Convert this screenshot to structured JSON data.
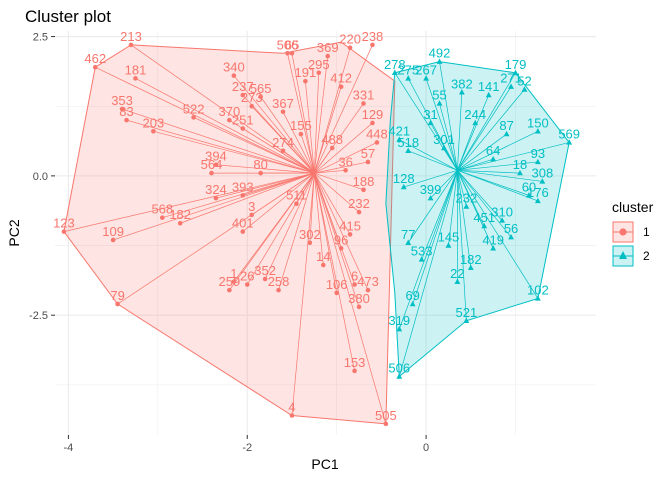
{
  "chart_data": {
    "type": "scatter",
    "title": "Cluster plot",
    "xlabel": "PC1",
    "ylabel": "PC2",
    "xlim": [
      -4.15,
      1.9
    ],
    "ylim": [
      -4.65,
      2.6
    ],
    "x_ticks": [
      -4,
      -2,
      0
    ],
    "x_tick_labels": [
      "-4",
      "-2",
      "0"
    ],
    "y_ticks": [
      2.5,
      0.0,
      -2.5
    ],
    "y_tick_labels": [
      "2.5",
      "0.0",
      "-2.5"
    ],
    "grid": true,
    "legend": {
      "title": "cluster",
      "placement": "right",
      "entries": [
        "1",
        "2"
      ]
    },
    "colors": {
      "cluster1": "#F8766D",
      "cluster2": "#00BFC4",
      "grid": "#ebebeb"
    },
    "clusters": [
      {
        "name": "1",
        "center": [
          -1.25,
          0.05
        ],
        "hull": [
          [
            -3.3,
            2.35
          ],
          [
            -1.6,
            2.2
          ],
          [
            -0.95,
            2.4
          ],
          [
            -0.35,
            1.7
          ],
          [
            -0.45,
            -4.45
          ],
          [
            -1.5,
            -4.3
          ],
          [
            -3.45,
            -2.3
          ],
          [
            -4.05,
            -1.0
          ],
          [
            -3.7,
            1.95
          ]
        ],
        "points": [
          {
            "id": "213",
            "x": -3.3,
            "y": 2.35
          },
          {
            "id": "462",
            "x": -3.7,
            "y": 1.95
          },
          {
            "id": "181",
            "x": -3.25,
            "y": 1.75
          },
          {
            "id": "353",
            "x": -3.4,
            "y": 1.2
          },
          {
            "id": "83",
            "x": -3.35,
            "y": 1.0
          },
          {
            "id": "203",
            "x": -3.05,
            "y": 0.8
          },
          {
            "id": "522",
            "x": -2.6,
            "y": 1.05
          },
          {
            "id": "340",
            "x": -2.15,
            "y": 1.8
          },
          {
            "id": "237",
            "x": -2.05,
            "y": 1.45
          },
          {
            "id": "565",
            "x": -1.85,
            "y": 1.42
          },
          {
            "id": "273",
            "x": -1.95,
            "y": 1.25
          },
          {
            "id": "370",
            "x": -2.2,
            "y": 1.0
          },
          {
            "id": "251",
            "x": -2.05,
            "y": 0.85
          },
          {
            "id": "394",
            "x": -2.35,
            "y": 0.2
          },
          {
            "id": "564",
            "x": -2.4,
            "y": 0.05
          },
          {
            "id": "324",
            "x": -2.35,
            "y": -0.4
          },
          {
            "id": "393",
            "x": -2.05,
            "y": -0.35
          },
          {
            "id": "568",
            "x": -2.95,
            "y": -0.75
          },
          {
            "id": "182",
            "x": -2.75,
            "y": -0.85
          },
          {
            "id": "401",
            "x": -2.05,
            "y": -1.0
          },
          {
            "id": "3",
            "x": -1.95,
            "y": -0.7
          },
          {
            "id": "109",
            "x": -3.5,
            "y": -1.15
          },
          {
            "id": "123",
            "x": -4.05,
            "y": -1.0
          },
          {
            "id": "79",
            "x": -3.45,
            "y": -2.3
          },
          {
            "id": "1",
            "x": -2.15,
            "y": -1.9
          },
          {
            "id": "259",
            "x": -2.2,
            "y": -2.05
          },
          {
            "id": "26",
            "x": -2.0,
            "y": -1.95
          },
          {
            "id": "352",
            "x": -1.8,
            "y": -1.85
          },
          {
            "id": "258",
            "x": -1.65,
            "y": -2.05
          },
          {
            "id": "506",
            "x": -1.55,
            "y": 2.2
          },
          {
            "id": "65",
            "x": -1.5,
            "y": 2.2
          },
          {
            "id": "369",
            "x": -1.1,
            "y": 2.15
          },
          {
            "id": "220",
            "x": -0.85,
            "y": 2.3
          },
          {
            "id": "238",
            "x": -0.6,
            "y": 2.35
          },
          {
            "id": "4",
            "x": -1.5,
            "y": -4.3
          },
          {
            "id": "505",
            "x": -0.45,
            "y": -4.45
          },
          {
            "id": "153",
            "x": -0.8,
            "y": -3.5
          },
          {
            "id": "380",
            "x": -0.75,
            "y": -2.35
          },
          {
            "id": "6",
            "x": -0.8,
            "y": -1.95
          },
          {
            "id": "473",
            "x": -0.65,
            "y": -2.05
          },
          {
            "id": "106",
            "x": -1.0,
            "y": -2.1
          },
          {
            "id": "14",
            "x": -1.15,
            "y": -1.6
          },
          {
            "id": "80",
            "x": -1.85,
            "y": 0.05
          },
          {
            "id": "367",
            "x": -1.6,
            "y": 1.15
          },
          {
            "id": "191",
            "x": -1.35,
            "y": 1.7
          },
          {
            "id": "295",
            "x": -1.2,
            "y": 1.85
          },
          {
            "id": "412",
            "x": -0.95,
            "y": 1.6
          },
          {
            "id": "331",
            "x": -0.7,
            "y": 1.3
          },
          {
            "id": "129",
            "x": -0.6,
            "y": 0.95
          },
          {
            "id": "448",
            "x": -0.55,
            "y": 0.6
          },
          {
            "id": "57",
            "x": -0.65,
            "y": 0.25
          },
          {
            "id": "188",
            "x": -0.7,
            "y": -0.25
          },
          {
            "id": "232",
            "x": -0.75,
            "y": -0.65
          },
          {
            "id": "415",
            "x": -0.85,
            "y": -1.05
          },
          {
            "id": "96",
            "x": -0.95,
            "y": -1.3
          },
          {
            "id": "302",
            "x": -1.3,
            "y": -1.2
          },
          {
            "id": "511",
            "x": -1.45,
            "y": -0.5
          },
          {
            "id": "274",
            "x": -1.6,
            "y": 0.45
          },
          {
            "id": "155",
            "x": -1.4,
            "y": 0.75
          },
          {
            "id": "488",
            "x": -1.05,
            "y": 0.5
          },
          {
            "id": "36",
            "x": -0.9,
            "y": 0.1
          }
        ]
      },
      {
        "name": "2",
        "center": [
          0.35,
          0.1
        ],
        "hull": [
          [
            -0.35,
            1.85
          ],
          [
            0.15,
            2.05
          ],
          [
            1.0,
            1.85
          ],
          [
            1.6,
            0.6
          ],
          [
            1.25,
            -2.2
          ],
          [
            0.45,
            -2.6
          ],
          [
            -0.3,
            -3.6
          ],
          [
            -0.35,
            -2.1
          ],
          [
            -0.45,
            -0.5
          ],
          [
            -0.4,
            1.0
          ]
        ],
        "points": [
          {
            "id": "278",
            "x": -0.35,
            "y": 1.85
          },
          {
            "id": "492",
            "x": 0.15,
            "y": 2.05
          },
          {
            "id": "179",
            "x": 1.0,
            "y": 1.85
          },
          {
            "id": "271",
            "x": 0.95,
            "y": 1.6
          },
          {
            "id": "52",
            "x": 1.1,
            "y": 1.55
          },
          {
            "id": "569",
            "x": 1.6,
            "y": 0.6
          },
          {
            "id": "150",
            "x": 1.25,
            "y": 0.8
          },
          {
            "id": "93",
            "x": 1.25,
            "y": 0.25
          },
          {
            "id": "308",
            "x": 1.3,
            "y": -0.1
          },
          {
            "id": "176",
            "x": 1.25,
            "y": -0.45
          },
          {
            "id": "60",
            "x": 1.15,
            "y": -0.35
          },
          {
            "id": "102",
            "x": 1.25,
            "y": -2.2
          },
          {
            "id": "521",
            "x": 0.45,
            "y": -2.6
          },
          {
            "id": "319",
            "x": -0.3,
            "y": -2.75
          },
          {
            "id": "506",
            "x": -0.3,
            "y": -3.6
          },
          {
            "id": "69",
            "x": -0.15,
            "y": -2.3
          },
          {
            "id": "275",
            "x": -0.2,
            "y": 1.75
          },
          {
            "id": "267",
            "x": 0.0,
            "y": 1.75
          },
          {
            "id": "382",
            "x": 0.4,
            "y": 1.5
          },
          {
            "id": "141",
            "x": 0.7,
            "y": 1.45
          },
          {
            "id": "55",
            "x": 0.15,
            "y": 1.3
          },
          {
            "id": "421",
            "x": -0.3,
            "y": 0.65
          },
          {
            "id": "518",
            "x": -0.2,
            "y": 0.45
          },
          {
            "id": "31",
            "x": 0.05,
            "y": 0.95
          },
          {
            "id": "244",
            "x": 0.55,
            "y": 0.95
          },
          {
            "id": "87",
            "x": 0.9,
            "y": 0.75
          },
          {
            "id": "301",
            "x": 0.2,
            "y": 0.5
          },
          {
            "id": "64",
            "x": 0.75,
            "y": 0.3
          },
          {
            "id": "128",
            "x": -0.25,
            "y": -0.2
          },
          {
            "id": "399",
            "x": 0.05,
            "y": -0.4
          },
          {
            "id": "232",
            "x": 0.45,
            "y": -0.55
          },
          {
            "id": "77",
            "x": -0.2,
            "y": -1.2
          },
          {
            "id": "533",
            "x": -0.05,
            "y": -1.5
          },
          {
            "id": "182",
            "x": 0.5,
            "y": -1.65
          },
          {
            "id": "22",
            "x": 0.35,
            "y": -1.9
          },
          {
            "id": "419",
            "x": 0.75,
            "y": -1.3
          },
          {
            "id": "56",
            "x": 0.95,
            "y": -1.1
          },
          {
            "id": "310",
            "x": 0.85,
            "y": -0.8
          },
          {
            "id": "145",
            "x": 0.25,
            "y": -1.25
          },
          {
            "id": "451",
            "x": 0.65,
            "y": -0.9
          },
          {
            "id": "18",
            "x": 1.05,
            "y": 0.05
          }
        ]
      }
    ]
  }
}
